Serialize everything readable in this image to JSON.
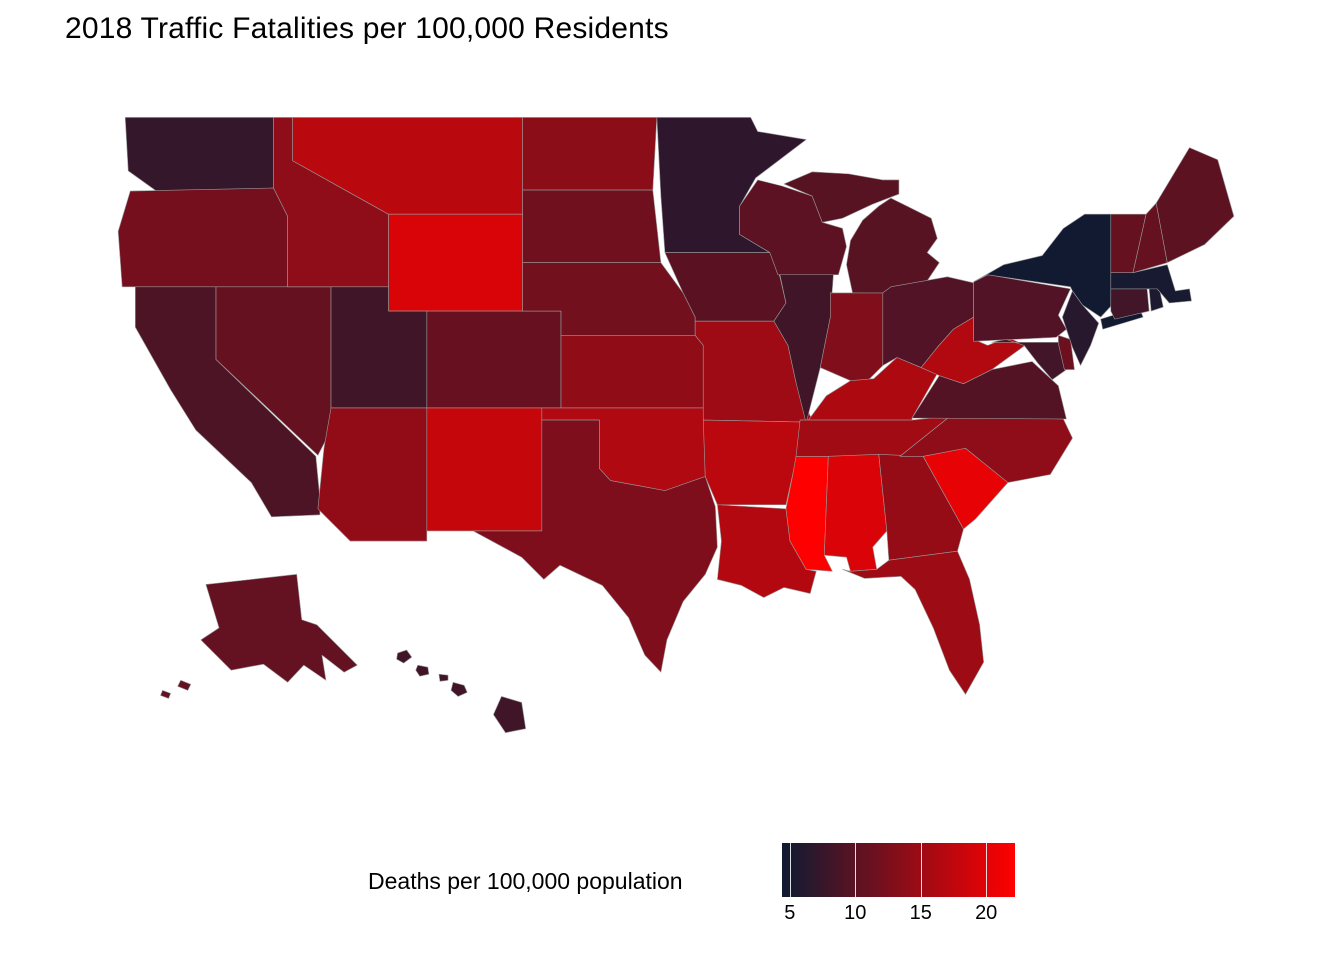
{
  "title": "2018 Traffic Fatalities per 100,000 Residents",
  "legend": {
    "label": "Deaths per 100,000 population",
    "ticks": [
      5,
      10,
      15,
      20
    ],
    "scale_min": 4.4,
    "scale_max": 22.2,
    "color_low": "#0d1b33",
    "color_high": "#ff0000"
  },
  "chart_data": {
    "type": "heatmap",
    "subtype": "us-state-choropleth",
    "title": "2018 Traffic Fatalities per 100,000 Residents",
    "legend_label": "Deaths per 100,000 population",
    "unit": "deaths per 100,000 residents",
    "color_scale": {
      "low_color": "#0d1b33",
      "high_color": "#ff0000",
      "domain": [
        4.4,
        22.2
      ],
      "legend_breaks": [
        5,
        10,
        15,
        20
      ]
    },
    "series": [
      {
        "code": "WA",
        "name": "Washington",
        "value": 7.3
      },
      {
        "code": "OR",
        "name": "Oregon",
        "value": 12.1
      },
      {
        "code": "CA",
        "name": "California",
        "value": 9.1
      },
      {
        "code": "NV",
        "name": "Nevada",
        "value": 10.9
      },
      {
        "code": "ID",
        "name": "Idaho",
        "value": 13.9
      },
      {
        "code": "MT",
        "name": "Montana",
        "value": 17.1
      },
      {
        "code": "WY",
        "name": "Wyoming",
        "value": 19.4
      },
      {
        "code": "UT",
        "name": "Utah",
        "value": 8.2
      },
      {
        "code": "CO",
        "name": "Colorado",
        "value": 11.0
      },
      {
        "code": "AZ",
        "name": "Arizona",
        "value": 14.1
      },
      {
        "code": "NM",
        "name": "New Mexico",
        "value": 17.9
      },
      {
        "code": "ND",
        "name": "North Dakota",
        "value": 13.7
      },
      {
        "code": "SD",
        "name": "South Dakota",
        "value": 11.7
      },
      {
        "code": "NE",
        "name": "Nebraska",
        "value": 11.9
      },
      {
        "code": "KS",
        "name": "Kansas",
        "value": 14.0
      },
      {
        "code": "OK",
        "name": "Oklahoma",
        "value": 16.4
      },
      {
        "code": "TX",
        "name": "Texas",
        "value": 12.7
      },
      {
        "code": "MN",
        "name": "Minnesota",
        "value": 6.8
      },
      {
        "code": "IA",
        "name": "Iowa",
        "value": 10.1
      },
      {
        "code": "MO",
        "name": "Missouri",
        "value": 15.1
      },
      {
        "code": "AR",
        "name": "Arkansas",
        "value": 17.2
      },
      {
        "code": "LA",
        "name": "Louisiana",
        "value": 16.6
      },
      {
        "code": "WI",
        "name": "Wisconsin",
        "value": 10.2
      },
      {
        "code": "IL",
        "name": "Illinois",
        "value": 8.2
      },
      {
        "code": "MS",
        "name": "Mississippi",
        "value": 22.2
      },
      {
        "code": "MI",
        "name": "Michigan",
        "value": 9.9
      },
      {
        "code": "IN",
        "name": "Indiana",
        "value": 12.9
      },
      {
        "code": "OH",
        "name": "Ohio",
        "value": 9.4
      },
      {
        "code": "KY",
        "name": "Kentucky",
        "value": 16.2
      },
      {
        "code": "TN",
        "name": "Tennessee",
        "value": 15.2
      },
      {
        "code": "AL",
        "name": "Alabama",
        "value": 19.5
      },
      {
        "code": "GA",
        "name": "Georgia",
        "value": 14.4
      },
      {
        "code": "FL",
        "name": "Florida",
        "value": 15.0
      },
      {
        "code": "SC",
        "name": "South Carolina",
        "value": 20.4
      },
      {
        "code": "NC",
        "name": "North Carolina",
        "value": 13.9
      },
      {
        "code": "VA",
        "name": "Virginia",
        "value": 9.6
      },
      {
        "code": "WV",
        "name": "West Virginia",
        "value": 16.5
      },
      {
        "code": "MD",
        "name": "Maryland",
        "value": 8.4
      },
      {
        "code": "DE",
        "name": "Delaware",
        "value": 11.4
      },
      {
        "code": "PA",
        "name": "Pennsylvania",
        "value": 9.4
      },
      {
        "code": "NJ",
        "name": "New Jersey",
        "value": 6.4
      },
      {
        "code": "NY",
        "name": "New York",
        "value": 4.8
      },
      {
        "code": "CT",
        "name": "Connecticut",
        "value": 8.3
      },
      {
        "code": "RI",
        "name": "Rhode Island",
        "value": 5.6
      },
      {
        "code": "MA",
        "name": "Massachusetts",
        "value": 5.2
      },
      {
        "code": "VT",
        "name": "Vermont",
        "value": 10.9
      },
      {
        "code": "NH",
        "name": "New Hampshire",
        "value": 10.9
      },
      {
        "code": "ME",
        "name": "Maine",
        "value": 10.3
      },
      {
        "code": "AK",
        "name": "Alaska",
        "value": 10.8
      },
      {
        "code": "HI",
        "name": "Hawaii",
        "value": 8.2
      }
    ]
  }
}
